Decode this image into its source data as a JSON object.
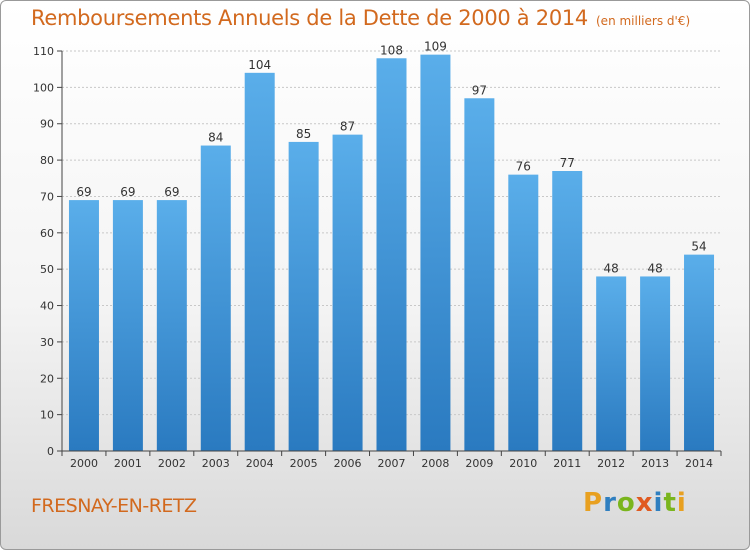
{
  "title": "Remboursements Annuels de la Dette de 2000 à 2014",
  "unit_note": "(en milliers d'€)",
  "commune": "FRESNAY-EN-RETZ",
  "logo": {
    "text": "Proxiti",
    "letters": [
      "P",
      "r",
      "o",
      "x",
      "i",
      "t",
      "i"
    ],
    "colors": [
      "#e8a020",
      "#2f7fc0",
      "#7ab51d",
      "#e05a20",
      "#2f7fc0",
      "#7ab51d",
      "#e8a020"
    ]
  },
  "colors": {
    "bar_top": "#5aaeea",
    "bar_bottom": "#2a7ac0",
    "grid": "#c8c8c8",
    "axis": "#444444"
  },
  "chart_data": {
    "type": "bar",
    "title": "Remboursements Annuels de la Dette de 2000 à 2014",
    "xlabel": "",
    "ylabel": "",
    "categories": [
      "2000",
      "2001",
      "2002",
      "2003",
      "2004",
      "2005",
      "2006",
      "2007",
      "2008",
      "2009",
      "2010",
      "2011",
      "2012",
      "2013",
      "2014"
    ],
    "values": [
      69,
      69,
      69,
      84,
      104,
      85,
      87,
      108,
      109,
      97,
      76,
      77,
      48,
      48,
      54
    ],
    "ylim": [
      0,
      110
    ],
    "yticks": [
      0,
      10,
      20,
      30,
      40,
      50,
      60,
      70,
      80,
      90,
      100,
      110
    ],
    "grid": true
  }
}
